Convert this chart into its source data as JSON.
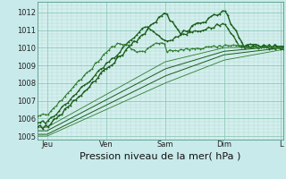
{
  "title": "Pression niveau de la mer( hPa )",
  "background_color": "#c8eaea",
  "plot_bg_color": "#d4efef",
  "grid_color_major": "#90c8b8",
  "grid_color_minor": "#b0d8cc",
  "line_color_dark": "#1a5c1a",
  "line_color_med": "#2e7d2e",
  "ylim": [
    1004.8,
    1012.6
  ],
  "xlim": [
    0,
    100
  ],
  "yticks": [
    1005,
    1006,
    1007,
    1008,
    1009,
    1010,
    1011,
    1012
  ],
  "day_labels": [
    "Jeu",
    "Ven",
    "Sam",
    "Dim",
    "L"
  ],
  "day_positions": [
    4,
    28,
    52,
    76,
    99
  ],
  "xlabel_fontsize": 8,
  "tick_fontsize": 6
}
